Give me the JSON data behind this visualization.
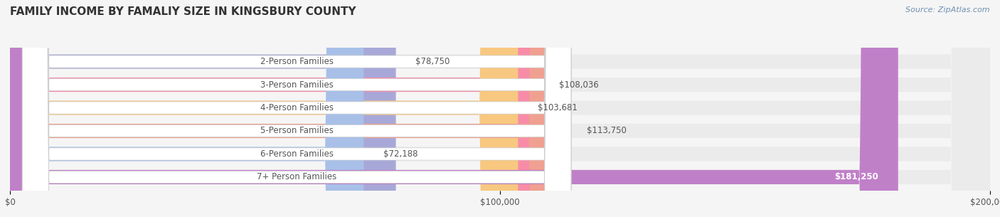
{
  "title": "FAMILY INCOME BY FAMALIY SIZE IN KINGSBURY COUNTY",
  "source": "Source: ZipAtlas.com",
  "categories": [
    "2-Person Families",
    "3-Person Families",
    "4-Person Families",
    "5-Person Families",
    "6-Person Families",
    "7+ Person Families"
  ],
  "values": [
    78750,
    108036,
    103681,
    113750,
    72188,
    181250
  ],
  "bar_colors": [
    "#a8a8d8",
    "#f88ca8",
    "#f8c880",
    "#f0a090",
    "#a8c0e8",
    "#c080c8"
  ],
  "value_labels": [
    "$78,750",
    "$108,036",
    "$103,681",
    "$113,750",
    "$72,188",
    "$181,250"
  ],
  "xlim": [
    0,
    200000
  ],
  "xticks": [
    0,
    100000,
    200000
  ],
  "xtick_labels": [
    "$0",
    "$100,000",
    "$200,000"
  ],
  "background_color": "#f5f5f5",
  "bar_background_color": "#ebebeb",
  "title_fontsize": 11,
  "bar_height": 0.62,
  "label_fontsize": 8.5,
  "value_fontsize": 8.5,
  "source_fontsize": 8
}
